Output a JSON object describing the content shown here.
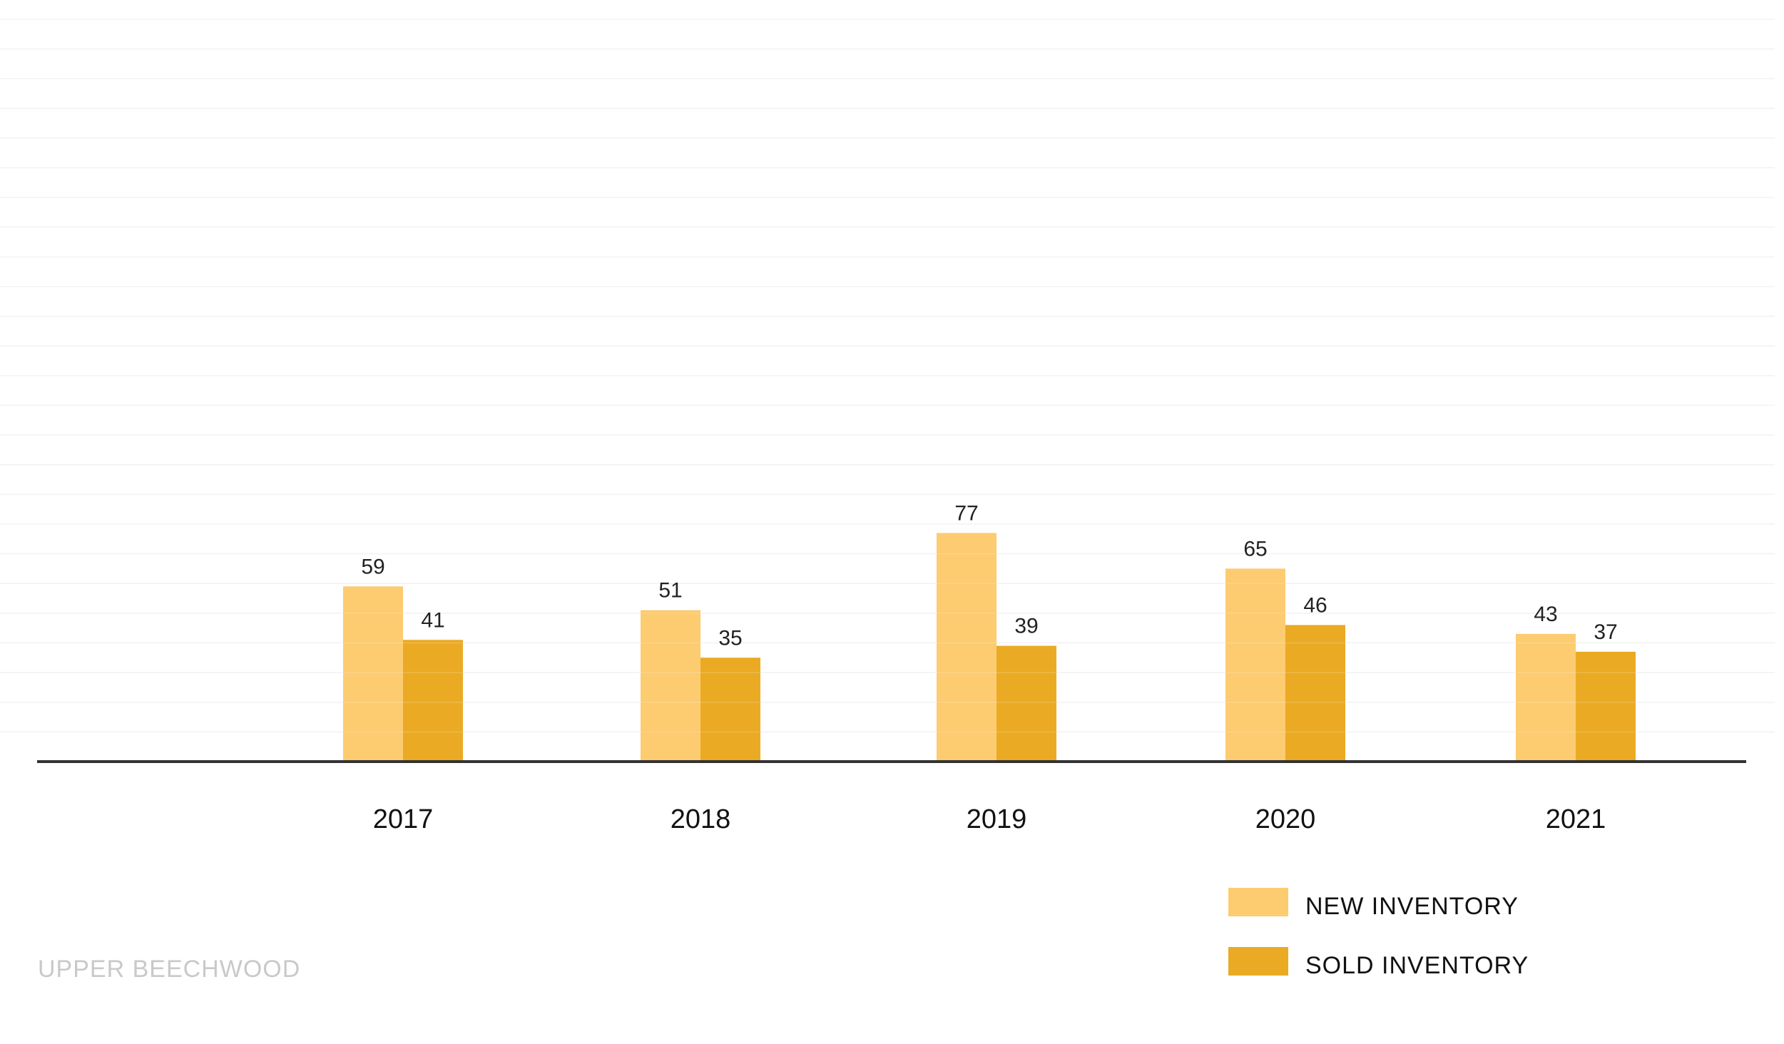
{
  "chart_data": {
    "type": "bar",
    "title": "",
    "xlabel": "",
    "ylabel": "",
    "categories": [
      "2017",
      "2018",
      "2019",
      "2020",
      "2021"
    ],
    "series": [
      {
        "name": "NEW INVENTORY",
        "color": "#FDCB70",
        "values": [
          59,
          51,
          77,
          65,
          43
        ]
      },
      {
        "name": "SOLD INVENTORY",
        "color": "#EAAA24",
        "values": [
          41,
          35,
          39,
          46,
          37
        ]
      }
    ],
    "ylim": [
      0,
      250
    ],
    "grid": true,
    "legend_position": "bottom-right",
    "footer_label": "UPPER BEECHWOOD"
  }
}
